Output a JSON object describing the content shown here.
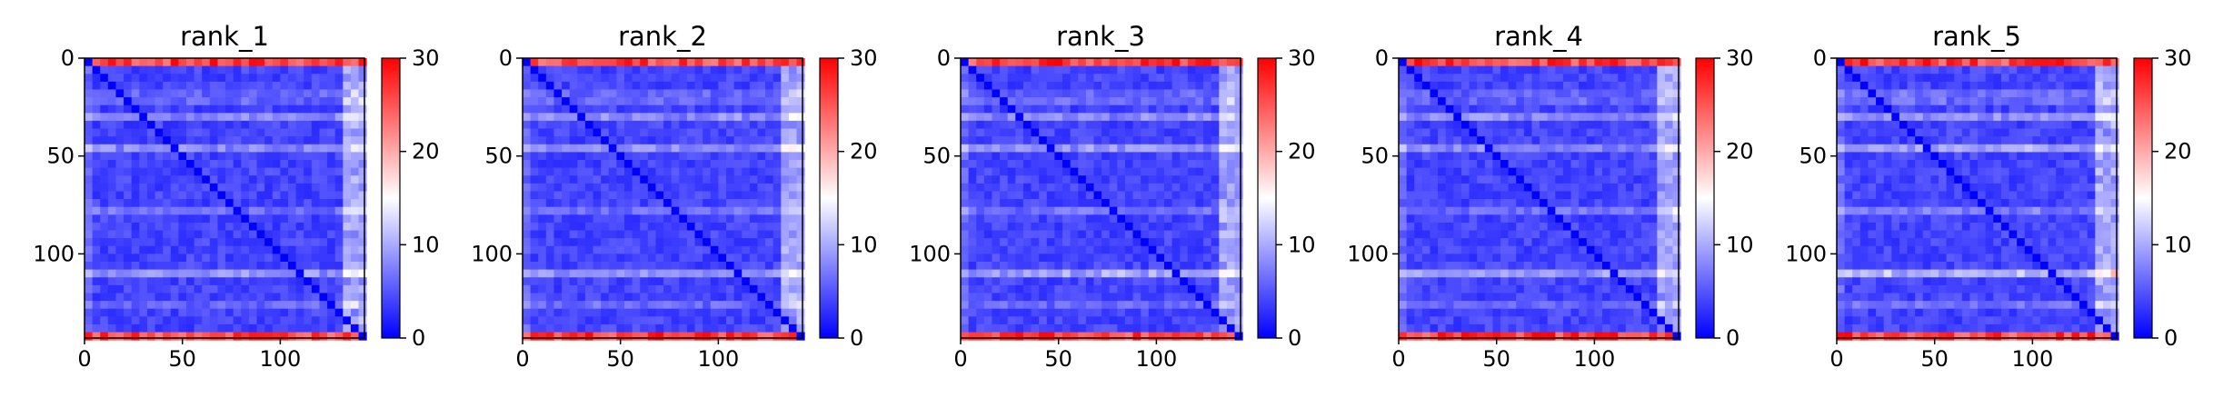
{
  "colors": {
    "low": "#0000ff",
    "mid": "#ffffff",
    "high": "#ff0000",
    "axis": "#000000",
    "background": "#ffffff"
  },
  "chart_data": [
    {
      "type": "heatmap",
      "title": "rank_1",
      "xlim": [
        0,
        143
      ],
      "ylim": [
        143,
        0
      ],
      "xticks": [
        0,
        50,
        100
      ],
      "yticks": [
        0,
        50,
        100
      ],
      "colorbar": {
        "min": 0,
        "max": 30,
        "ticks": [
          0,
          10,
          20,
          30
        ],
        "colormap": "bwr"
      },
      "features": {
        "edge_rows_value": 30,
        "band_rows": [
          18,
          28,
          45,
          75,
          108,
          125
        ],
        "band_strength": [
          0.7,
          0.5,
          0.8,
          0.5,
          0.6,
          0.4
        ],
        "diagonal_value": 0,
        "typical_value": 4
      }
    },
    {
      "type": "heatmap",
      "title": "rank_2",
      "xlim": [
        0,
        143
      ],
      "ylim": [
        143,
        0
      ],
      "xticks": [
        0,
        50,
        100
      ],
      "yticks": [
        0,
        50,
        100
      ],
      "colorbar": {
        "min": 0,
        "max": 30,
        "ticks": [
          0,
          10,
          20,
          30
        ],
        "colormap": "bwr"
      },
      "features": {
        "edge_rows_value": 30,
        "band_rows": [
          18,
          28,
          45,
          75,
          108,
          125
        ],
        "band_strength": [
          0.7,
          0.5,
          0.8,
          0.5,
          0.6,
          0.4
        ],
        "diagonal_value": 0,
        "typical_value": 4
      }
    },
    {
      "type": "heatmap",
      "title": "rank_3",
      "xlim": [
        0,
        143
      ],
      "ylim": [
        143,
        0
      ],
      "xticks": [
        0,
        50,
        100
      ],
      "yticks": [
        0,
        50,
        100
      ],
      "colorbar": {
        "min": 0,
        "max": 30,
        "ticks": [
          0,
          10,
          20,
          30
        ],
        "colormap": "bwr"
      },
      "features": {
        "edge_rows_value": 30,
        "band_rows": [
          18,
          28,
          45,
          75,
          108,
          125
        ],
        "band_strength": [
          0.8,
          0.5,
          0.9,
          0.5,
          0.7,
          0.4
        ],
        "diagonal_value": 0,
        "typical_value": 4
      }
    },
    {
      "type": "heatmap",
      "title": "rank_4",
      "xlim": [
        0,
        143
      ],
      "ylim": [
        143,
        0
      ],
      "xticks": [
        0,
        50,
        100
      ],
      "yticks": [
        0,
        50,
        100
      ],
      "colorbar": {
        "min": 0,
        "max": 30,
        "ticks": [
          0,
          10,
          20,
          30
        ],
        "colormap": "bwr"
      },
      "features": {
        "edge_rows_value": 30,
        "band_rows": [
          18,
          28,
          45,
          75,
          108,
          125
        ],
        "band_strength": [
          0.7,
          0.5,
          0.8,
          0.5,
          0.6,
          0.4
        ],
        "diagonal_value": 0,
        "typical_value": 4
      }
    },
    {
      "type": "heatmap",
      "title": "rank_5",
      "xlim": [
        0,
        143
      ],
      "ylim": [
        143,
        0
      ],
      "xticks": [
        0,
        50,
        100
      ],
      "yticks": [
        0,
        50,
        100
      ],
      "colorbar": {
        "min": 0,
        "max": 30,
        "ticks": [
          0,
          10,
          20,
          30
        ],
        "colormap": "bwr"
      },
      "features": {
        "edge_rows_value": 30,
        "band_rows": [
          18,
          28,
          45,
          75,
          108,
          125
        ],
        "band_strength": [
          0.9,
          0.6,
          1.0,
          0.6,
          0.8,
          0.5
        ],
        "diagonal_value": 0,
        "typical_value": 4
      }
    }
  ]
}
